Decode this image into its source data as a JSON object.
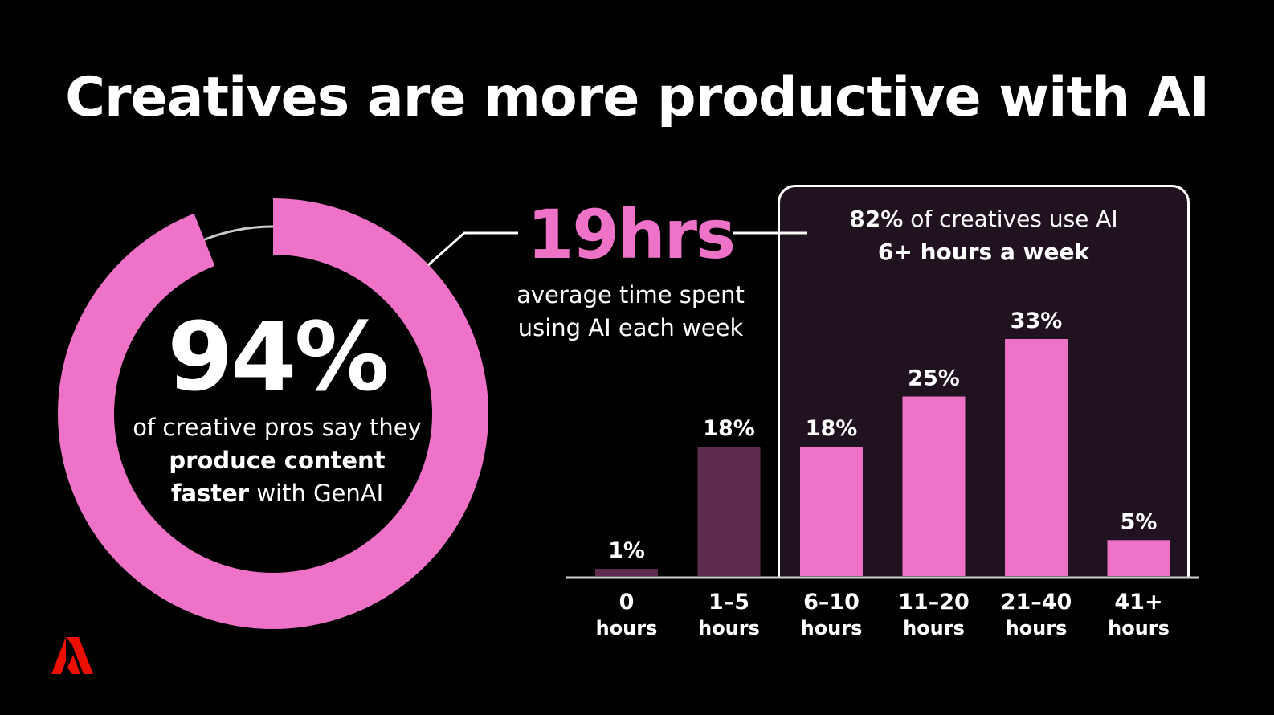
{
  "title": "Creatives are more productive with AI",
  "donut": {
    "value_label": "94%",
    "value": 94,
    "caption_line1": "of creative pros say they",
    "caption_line2": "produce content",
    "caption_line3_bold": "faster",
    "caption_line3_rest": " with GenAI"
  },
  "hours_stat": {
    "value": "19hrs",
    "caption_line1": "average time spent",
    "caption_line2": "using AI each week"
  },
  "highlight": {
    "line1_bold": "82%",
    "line1_rest": " of creatives use AI",
    "line2": "6+ hours a week"
  },
  "colors": {
    "pink": "#ee72c8",
    "dark_purple": "#5e2b4f",
    "background": "#000000",
    "box_fill": "#211220",
    "adobe_red": "#eb1000"
  },
  "chart_data": {
    "type": "bar",
    "categories": [
      [
        "0",
        "hours"
      ],
      [
        "1–5",
        "hours"
      ],
      [
        "6–10",
        "hours"
      ],
      [
        "11–20",
        "hours"
      ],
      [
        "21–40",
        "hours"
      ],
      [
        "41+",
        "hours"
      ]
    ],
    "values": [
      1,
      18,
      18,
      25,
      33,
      5
    ],
    "data_labels": [
      "1%",
      "18%",
      "18%",
      "25%",
      "33%",
      "5%"
    ],
    "bar_colors": [
      "#5e2b4f",
      "#5e2b4f",
      "#ee72c8",
      "#ee72c8",
      "#ee72c8",
      "#ee72c8"
    ],
    "title": "",
    "xlabel": "",
    "ylabel": "",
    "ylim": [
      0,
      33
    ]
  }
}
